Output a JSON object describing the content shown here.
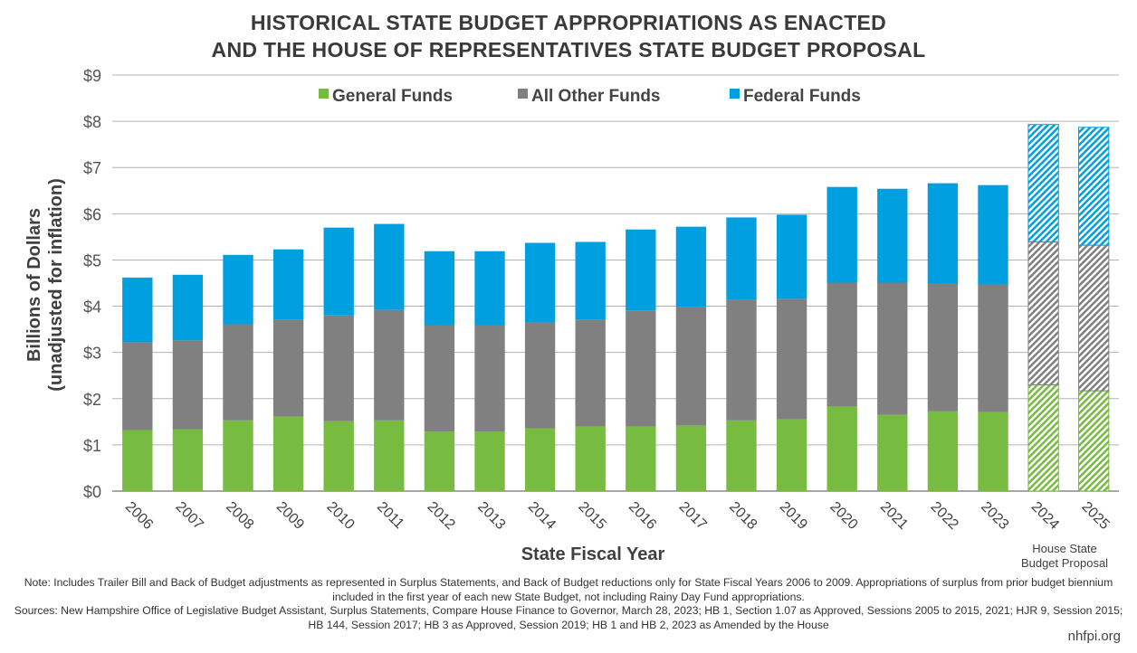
{
  "chart_data": {
    "type": "bar",
    "stacked": true,
    "title": "HISTORICAL STATE BUDGET APPROPRIATIONS AS ENACTED AND THE HOUSE OF REPRESENTATIVES STATE BUDGET PROPOSAL",
    "title_lines": [
      "HISTORICAL STATE BUDGET APPROPRIATIONS AS ENACTED",
      "AND THE HOUSE OF REPRESENTATIVES STATE BUDGET PROPOSAL"
    ],
    "xlabel": "State Fiscal Year",
    "ylabel_lines": [
      "Billions of Dollars",
      "(unadjusted for inflation)"
    ],
    "ylim": [
      0,
      9
    ],
    "yticks": [
      "$0",
      "$1",
      "$2",
      "$3",
      "$4",
      "$5",
      "$6",
      "$7",
      "$8",
      "$9"
    ],
    "grid": true,
    "legend_position": "top",
    "categories": [
      "2006",
      "2007",
      "2008",
      "2009",
      "2010",
      "2011",
      "2012",
      "2013",
      "2014",
      "2015",
      "2016",
      "2017",
      "2018",
      "2019",
      "2020",
      "2021",
      "2022",
      "2023",
      "2024",
      "2025"
    ],
    "proposal_categories": [
      "2024",
      "2025"
    ],
    "proposal_label_lines": [
      "House State",
      "Budget Proposal"
    ],
    "series": [
      {
        "name": "General Funds",
        "color": "#77bb41",
        "values": [
          1.32,
          1.34,
          1.53,
          1.61,
          1.51,
          1.53,
          1.29,
          1.29,
          1.36,
          1.4,
          1.4,
          1.42,
          1.53,
          1.55,
          1.83,
          1.65,
          1.73,
          1.71,
          2.3,
          2.17
        ]
      },
      {
        "name": "All Other Funds",
        "color": "#808080",
        "values": [
          1.9,
          1.92,
          2.08,
          2.1,
          2.29,
          2.39,
          2.3,
          2.3,
          2.29,
          2.31,
          2.51,
          2.57,
          2.61,
          2.61,
          2.68,
          2.86,
          2.76,
          2.76,
          3.09,
          3.15
        ]
      },
      {
        "name": "Federal Funds",
        "color": "#009fdf",
        "values": [
          1.4,
          1.42,
          1.5,
          1.52,
          1.9,
          1.86,
          1.6,
          1.6,
          1.72,
          1.68,
          1.75,
          1.73,
          1.78,
          1.82,
          2.07,
          2.03,
          2.17,
          2.15,
          2.54,
          2.55
        ]
      }
    ]
  },
  "notes": {
    "note": "Note: Includes Trailer Bill and Back of Budget adjustments as represented in Surplus Statements, and Back of Budget reductions only for State Fiscal Years 2006 to 2009. Appropriations of surplus from prior budget biennium included in the first year of each new State Budget, not including Rainy Day Fund appropriations.",
    "sources": "Sources: New Hampshire Office of Legislative Budget Assistant, Surplus Statements, Compare House Finance to Governor, March 28, 2023; HB 1, Section 1.07 as Approved, Sessions 2005 to 2015, 2021; HJR 9, Session 2015; HB 144, Session 2017; HB 3 as Approved, Session 2019; HB 1 and HB 2, 2023 as Amended by the House"
  },
  "brand": "nhfpi.org"
}
